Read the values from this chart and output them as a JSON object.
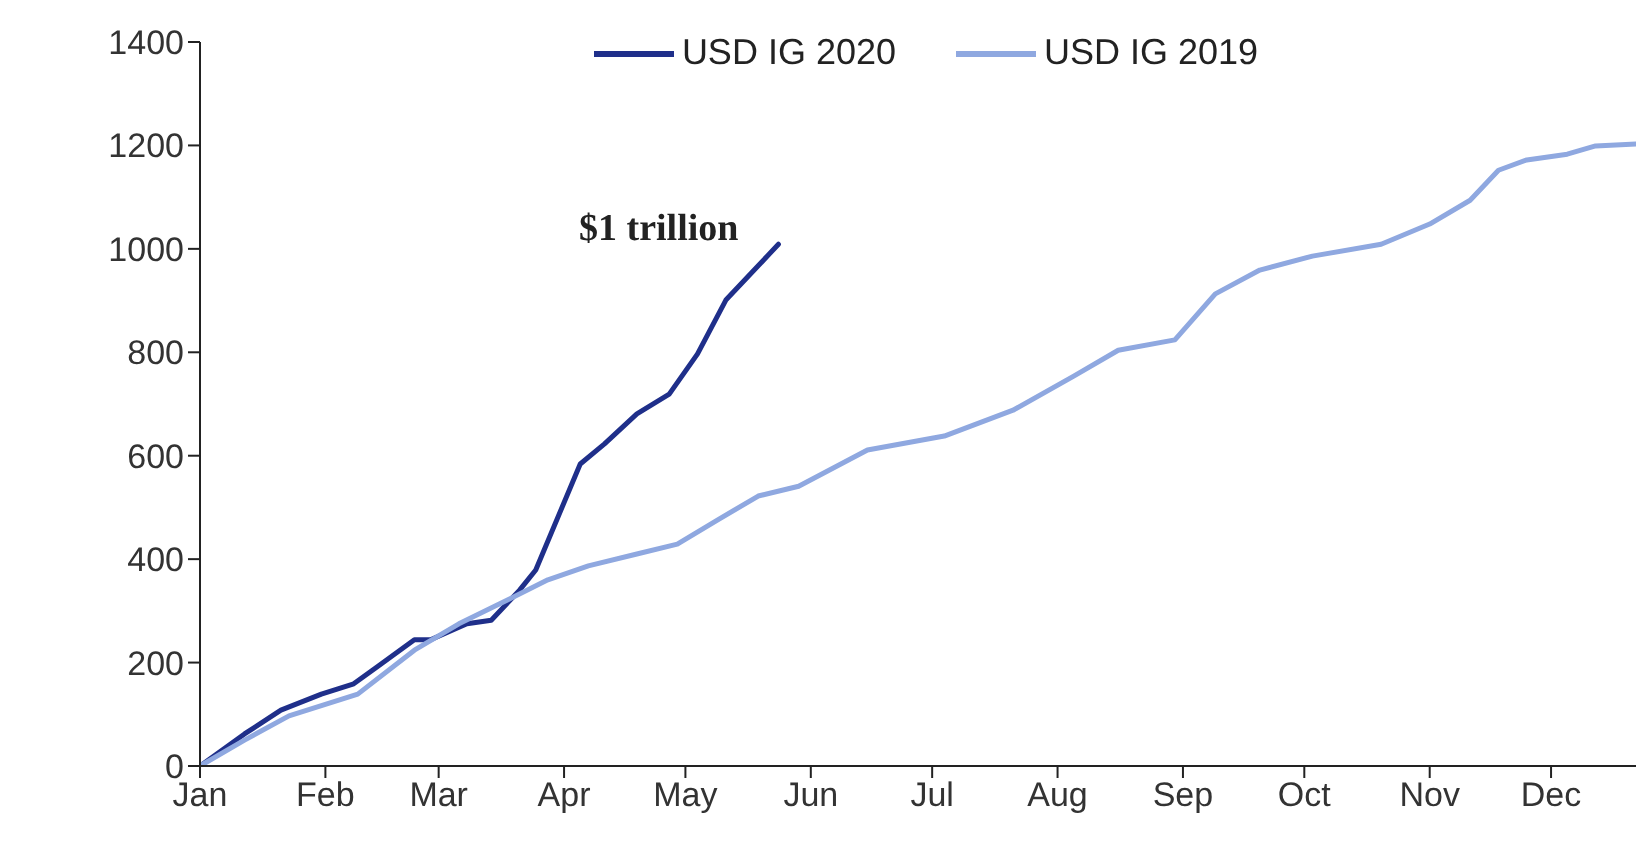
{
  "chart_data": {
    "type": "line",
    "xlim": [
      "--01-01",
      "--12-22"
    ],
    "xticks": [
      {
        "value": "--01-01",
        "label": "Jan"
      },
      {
        "value": "--02-01",
        "label": "Feb"
      },
      {
        "value": "--03-01",
        "label": "Mar"
      },
      {
        "value": "--04-01",
        "label": "Apr"
      },
      {
        "value": "--05-01",
        "label": "May"
      },
      {
        "value": "--06-01",
        "label": "Jun"
      },
      {
        "value": "--07-01",
        "label": "Jul"
      },
      {
        "value": "--08-01",
        "label": "Aug"
      },
      {
        "value": "--09-01",
        "label": "Sep"
      },
      {
        "value": "--10-01",
        "label": "Oct"
      },
      {
        "value": "--11-01",
        "label": "Nov"
      },
      {
        "value": "--12-01",
        "label": "Dec"
      }
    ],
    "ylim": [
      0,
      1400
    ],
    "yticks": [
      0,
      200,
      400,
      600,
      800,
      1000,
      1200,
      1400
    ],
    "grid": false,
    "legend": "top",
    "marker": "none",
    "line_style": "solid",
    "annotations": [
      {
        "text": "$1 trillion",
        "x": "--05-24",
        "y": 1009
      }
    ],
    "series": [
      {
        "name": "USD IG 2020",
        "color": "#1f2f8a",
        "x": [
          "--01-01",
          "--01-12",
          "--01-21",
          "--01-31",
          "--02-08",
          "--02-14",
          "--02-23",
          "--02-27",
          "--03-08",
          "--03-14",
          "--03-21",
          "--03-25",
          "--04-05",
          "--04-11",
          "--04-19",
          "--04-27",
          "--05-04",
          "--05-11",
          "--05-18",
          "--05-24"
        ],
        "values": [
          0,
          62,
          108,
          139,
          159,
          193,
          244,
          244,
          275,
          282,
          340,
          379,
          584,
          623,
          681,
          719,
          797,
          901,
          959,
          1009
        ]
      },
      {
        "name": "USD IG 2019",
        "color": "#8fa8e0",
        "x": [
          "--01-01",
          "--01-12",
          "--01-23",
          "--02-09",
          "--02-23",
          "--03-06",
          "--03-18",
          "--03-28",
          "--04-07",
          "--04-19",
          "--04-29",
          "--05-09",
          "--05-19",
          "--05-29",
          "--06-15",
          "--07-04",
          "--07-21",
          "--08-05",
          "--08-16",
          "--08-30",
          "--09-09",
          "--09-20",
          "--10-03",
          "--10-20",
          "--11-01",
          "--11-11",
          "--11-18",
          "--11-25",
          "--12-05",
          "--12-12",
          "--12-22"
        ],
        "values": [
          0,
          50,
          97,
          139,
          224,
          275,
          321,
          360,
          387,
          410,
          429,
          476,
          522,
          541,
          611,
          638,
          688,
          754,
          804,
          824,
          913,
          959,
          986,
          1009,
          1048,
          1094,
          1152,
          1172,
          1183,
          1199,
          1203
        ]
      }
    ]
  }
}
